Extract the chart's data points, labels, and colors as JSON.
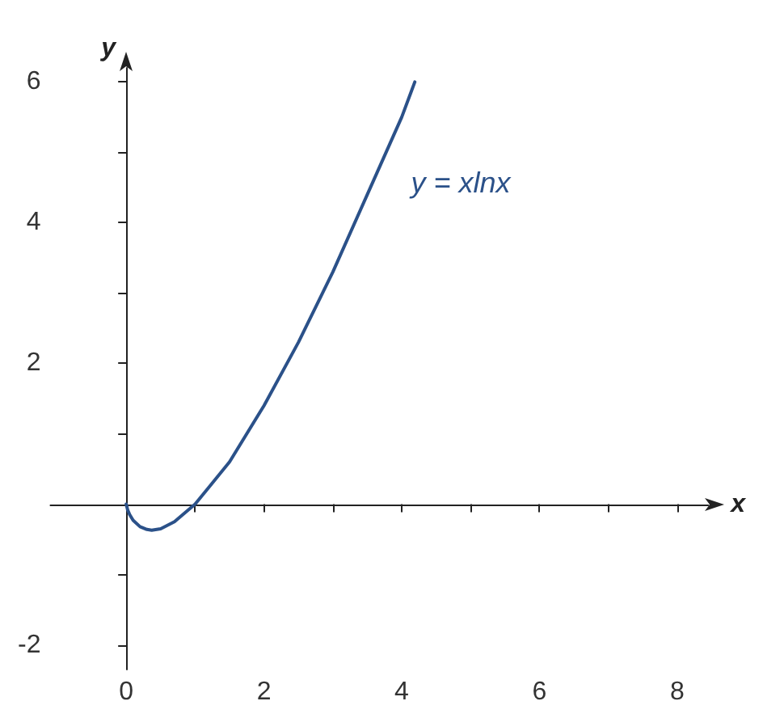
{
  "chart_data": {
    "type": "line",
    "xlabel": "x",
    "ylabel": "y",
    "x": [
      0,
      0.02,
      0.05,
      0.1,
      0.2,
      0.3,
      0.37,
      0.5,
      0.7,
      1,
      1.5,
      2,
      2.5,
      3,
      3.5,
      4,
      4.19
    ],
    "series": [
      {
        "color": "#2b5189",
        "values": [
          0,
          -0.08,
          -0.15,
          -0.23,
          -0.32,
          -0.36,
          -0.37,
          -0.35,
          -0.25,
          0,
          0.6,
          1.4,
          2.3,
          3.3,
          4.4,
          5.5,
          6.0
        ]
      }
    ],
    "annotations": [
      "y = xlnx"
    ],
    "xlim": [
      -1.1,
      8.45
    ],
    "ylim": [
      -2.35,
      6.2
    ],
    "xticks": [
      0,
      {
        "value": 1,
        "label": null
      },
      2,
      {
        "value": 3,
        "label": null
      },
      4,
      {
        "value": 5,
        "label": null
      },
      6,
      {
        "value": 7,
        "label": null
      },
      8
    ],
    "yticks": [
      -2,
      {
        "value": -1,
        "label": null
      },
      {
        "value": 0,
        "label": null
      },
      {
        "value": 1,
        "label": null
      },
      2,
      {
        "value": 3,
        "label": null
      },
      4,
      {
        "value": 5,
        "label": null
      },
      6
    ],
    "marker": "none",
    "line_style": "solid"
  }
}
